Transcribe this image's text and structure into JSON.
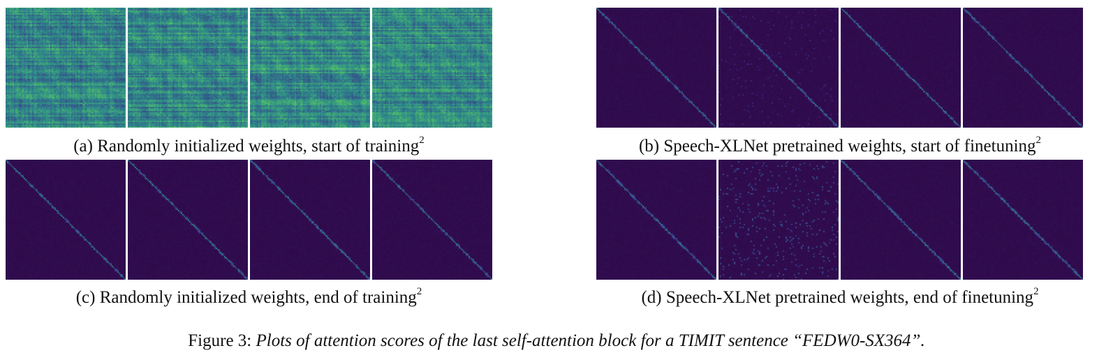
{
  "figure": {
    "label": "Figure 3:",
    "description": "Plots of attention scores of the last self-attention block for a TIMIT sentence “FEDW0-SX364”."
  },
  "colormap": {
    "background": "#2f0a4a",
    "low": "#3b2a86",
    "mid": "#2e8a8a",
    "high": "#5ed25a"
  },
  "panels": [
    {
      "id": "a",
      "caption": "(a) Randomly initialized weights, start of training",
      "footnote": "2",
      "style": "random-start",
      "heads": 4
    },
    {
      "id": "b",
      "caption": "(b) Speech-XLNet pretrained weights, start of finetuning",
      "footnote": "2",
      "style": "pretrained-start",
      "heads": 4
    },
    {
      "id": "c",
      "caption": "(c) Randomly initialized weights, end of training",
      "footnote": "2",
      "style": "random-end",
      "heads": 4
    },
    {
      "id": "d",
      "caption": "(d) Speech-XLNet pretrained weights, end of finetuning",
      "footnote": "2",
      "style": "pretrained-end",
      "heads": 4
    }
  ]
}
